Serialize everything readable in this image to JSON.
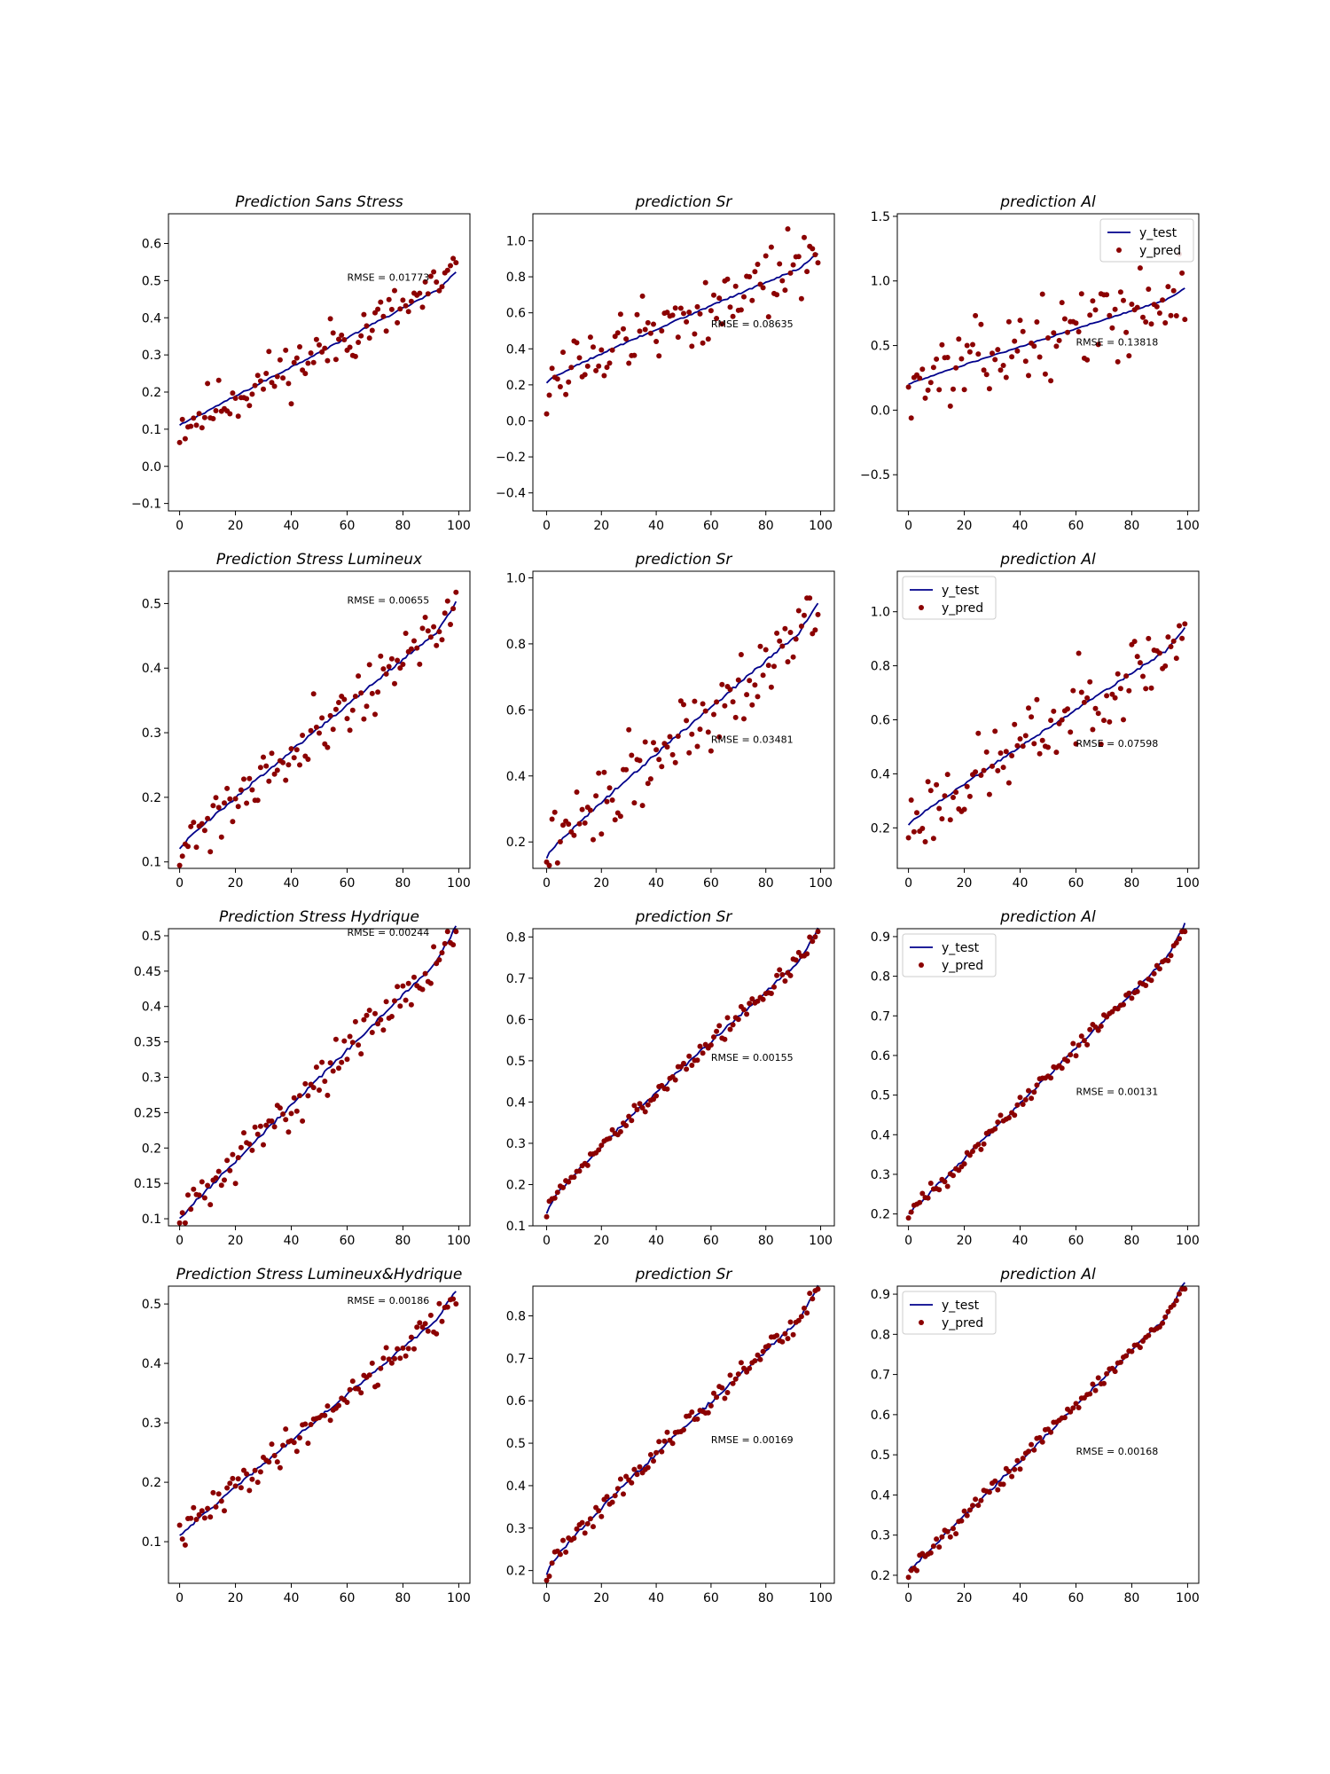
{
  "figure": {
    "colors": {
      "line": "#00008b",
      "points": "#8b0000",
      "axes": "#000000",
      "background": "#ffffff"
    }
  },
  "chart_data": [
    {
      "type": "scatter",
      "title": "Prediction Sans Stress",
      "xlim": [
        -4,
        104
      ],
      "ylim": [
        -0.12,
        0.68
      ],
      "yticks": [
        -0.1,
        0.0,
        0.1,
        0.2,
        0.3,
        0.4,
        0.5,
        0.6
      ],
      "xticks": [
        0,
        20,
        40,
        60,
        80,
        100
      ],
      "legend": false,
      "rmse_label": "RMSE = 0.01773",
      "rmse_pos": [
        60,
        0.5
      ],
      "series": [
        {
          "name": "y_test",
          "type": "line",
          "start": 0.11,
          "end": 0.5,
          "shape": 1.0
        },
        {
          "name": "y_pred",
          "type": "points",
          "center": "line",
          "spread": 0.11,
          "seed": 11
        }
      ]
    },
    {
      "type": "scatter",
      "title": "prediction Sr",
      "xlim": [
        -5,
        105
      ],
      "ylim": [
        -0.5,
        1.15
      ],
      "yticks": [
        -0.4,
        -0.2,
        0.0,
        0.2,
        0.4,
        0.6,
        0.8,
        1.0
      ],
      "xticks": [
        0,
        20,
        40,
        60,
        80,
        100
      ],
      "legend": false,
      "rmse_label": "RMSE = 0.08635",
      "rmse_pos": [
        60,
        0.52
      ],
      "series": [
        {
          "name": "y_test",
          "type": "line",
          "start": 0.21,
          "end": 0.89,
          "shape": 0.7
        },
        {
          "name": "y_pred",
          "type": "points",
          "center": "line",
          "spread": 0.3,
          "seed": 12
        }
      ]
    },
    {
      "type": "scatter",
      "title": "prediction Al",
      "xlim": [
        -4,
        104
      ],
      "ylim": [
        -0.78,
        1.52
      ],
      "yticks": [
        -0.5,
        0.0,
        0.5,
        1.0,
        1.5
      ],
      "xticks": [
        0,
        20,
        40,
        60,
        80,
        100
      ],
      "legend": "upper right",
      "rmse_label": "RMSE = 0.13818",
      "rmse_pos": [
        60,
        0.5
      ],
      "series": [
        {
          "name": "y_test",
          "type": "line",
          "start": 0.2,
          "end": 0.9,
          "shape": 0.9
        },
        {
          "name": "y_pred",
          "type": "points",
          "center": "line",
          "spread": 0.42,
          "seed": 13
        }
      ]
    },
    {
      "type": "scatter",
      "title": "Prediction Stress Lumineux",
      "xlim": [
        -4,
        104
      ],
      "ylim": [
        0.09,
        0.55
      ],
      "yticks": [
        0.1,
        0.2,
        0.3,
        0.4,
        0.5
      ],
      "xticks": [
        0,
        20,
        40,
        60,
        80,
        100
      ],
      "legend": false,
      "rmse_label": "RMSE = 0.00655",
      "rmse_pos": [
        60,
        0.5
      ],
      "series": [
        {
          "name": "y_test",
          "type": "line",
          "start": 0.12,
          "end": 0.48,
          "shape": 0.85
        },
        {
          "name": "y_pred",
          "type": "points",
          "center": "line",
          "spread": 0.07,
          "seed": 21
        }
      ]
    },
    {
      "type": "scatter",
      "title": "prediction Sr",
      "xlim": [
        -5,
        105
      ],
      "ylim": [
        0.12,
        1.02
      ],
      "yticks": [
        0.2,
        0.4,
        0.6,
        0.8,
        1.0
      ],
      "xticks": [
        0,
        20,
        40,
        60,
        80,
        100
      ],
      "legend": false,
      "rmse_label": "RMSE = 0.03481",
      "rmse_pos": [
        60,
        0.5
      ],
      "series": [
        {
          "name": "y_test",
          "type": "line",
          "start": 0.15,
          "end": 0.88,
          "shape": 0.75
        },
        {
          "name": "y_pred",
          "type": "points",
          "center": "line",
          "spread": 0.17,
          "seed": 22
        }
      ]
    },
    {
      "type": "scatter",
      "title": "prediction Al",
      "xlim": [
        -4,
        104
      ],
      "ylim": [
        0.05,
        1.15
      ],
      "yticks": [
        0.2,
        0.4,
        0.6,
        0.8,
        1.0
      ],
      "xticks": [
        0,
        20,
        40,
        60,
        80,
        100
      ],
      "legend": "upper left",
      "rmse_label": "RMSE = 0.07598",
      "rmse_pos": [
        60,
        0.5
      ],
      "series": [
        {
          "name": "y_test",
          "type": "line",
          "start": 0.21,
          "end": 0.9,
          "shape": 0.85
        },
        {
          "name": "y_pred",
          "type": "points",
          "center": "line",
          "spread": 0.22,
          "seed": 23
        }
      ]
    },
    {
      "type": "scatter",
      "title": "Prediction Stress Hydrique",
      "xlim": [
        -4,
        104
      ],
      "ylim": [
        0.09,
        0.51
      ],
      "yticks": [
        0.1,
        0.15,
        0.2,
        0.25,
        0.3,
        0.35,
        0.4,
        0.45,
        0.5
      ],
      "xticks": [
        0,
        20,
        40,
        60,
        80,
        100
      ],
      "legend": false,
      "rmse_label": "RMSE = 0.00244",
      "rmse_pos": [
        60,
        0.5
      ],
      "series": [
        {
          "name": "y_test",
          "type": "line",
          "start": 0.1,
          "end": 0.49,
          "shape": 0.95
        },
        {
          "name": "y_pred",
          "type": "points",
          "center": "line",
          "spread": 0.045,
          "seed": 31
        }
      ]
    },
    {
      "type": "scatter",
      "title": "prediction Sr",
      "xlim": [
        -5,
        105
      ],
      "ylim": [
        0.1,
        0.82
      ],
      "yticks": [
        0.1,
        0.2,
        0.3,
        0.4,
        0.5,
        0.6,
        0.7,
        0.8
      ],
      "xticks": [
        0,
        20,
        40,
        60,
        80,
        100
      ],
      "legend": false,
      "rmse_label": "RMSE = 0.00155",
      "rmse_pos": [
        60,
        0.5
      ],
      "series": [
        {
          "name": "y_test",
          "type": "line",
          "start": 0.13,
          "end": 0.78,
          "shape": 0.6
        },
        {
          "name": "y_pred",
          "type": "points",
          "center": "line",
          "spread": 0.035,
          "seed": 32
        }
      ]
    },
    {
      "type": "scatter",
      "title": "prediction Al",
      "xlim": [
        -4,
        104
      ],
      "ylim": [
        0.17,
        0.92
      ],
      "yticks": [
        0.2,
        0.3,
        0.4,
        0.5,
        0.6,
        0.7,
        0.8,
        0.9
      ],
      "xticks": [
        0,
        20,
        40,
        60,
        80,
        100
      ],
      "legend": "upper left",
      "rmse_label": "RMSE = 0.00131",
      "rmse_pos": [
        60,
        0.5
      ],
      "series": [
        {
          "name": "y_test",
          "type": "line",
          "start": 0.2,
          "end": 0.89,
          "shape": 1.0
        },
        {
          "name": "y_pred",
          "type": "points",
          "center": "line",
          "spread": 0.03,
          "seed": 33
        }
      ]
    },
    {
      "type": "scatter",
      "title": "Prediction Stress Lumineux&Hydrique",
      "xlim": [
        -4,
        104
      ],
      "ylim": [
        0.03,
        0.53
      ],
      "yticks": [
        0.1,
        0.2,
        0.3,
        0.4,
        0.5
      ],
      "xticks": [
        0,
        20,
        40,
        60,
        80,
        100
      ],
      "legend": false,
      "rmse_label": "RMSE = 0.00186",
      "rmse_pos": [
        60,
        0.5
      ],
      "series": [
        {
          "name": "y_test",
          "type": "line",
          "start": 0.11,
          "end": 0.5,
          "shape": 0.95
        },
        {
          "name": "y_pred",
          "type": "points",
          "center": "line",
          "spread": 0.04,
          "seed": 41
        }
      ]
    },
    {
      "type": "scatter",
      "title": "prediction Sr",
      "xlim": [
        -5,
        105
      ],
      "ylim": [
        0.17,
        0.87
      ],
      "yticks": [
        0.2,
        0.3,
        0.4,
        0.5,
        0.6,
        0.7,
        0.8
      ],
      "xticks": [
        0,
        20,
        40,
        60,
        80,
        100
      ],
      "legend": false,
      "rmse_label": "RMSE = 0.00169",
      "rmse_pos": [
        60,
        0.5
      ],
      "series": [
        {
          "name": "y_test",
          "type": "line",
          "start": 0.19,
          "end": 0.83,
          "shape": 0.65
        },
        {
          "name": "y_pred",
          "type": "points",
          "center": "line",
          "spread": 0.035,
          "seed": 42
        }
      ]
    },
    {
      "type": "scatter",
      "title": "prediction Al",
      "xlim": [
        -4,
        104
      ],
      "ylim": [
        0.18,
        0.92
      ],
      "yticks": [
        0.2,
        0.3,
        0.4,
        0.5,
        0.6,
        0.7,
        0.8,
        0.9
      ],
      "xticks": [
        0,
        20,
        40,
        60,
        80,
        100
      ],
      "legend": "upper left",
      "rmse_label": "RMSE = 0.00168",
      "rmse_pos": [
        60,
        0.5
      ],
      "series": [
        {
          "name": "y_test",
          "type": "line",
          "start": 0.21,
          "end": 0.89,
          "shape": 1.0
        },
        {
          "name": "y_pred",
          "type": "points",
          "center": "line",
          "spread": 0.03,
          "seed": 43
        }
      ]
    }
  ]
}
